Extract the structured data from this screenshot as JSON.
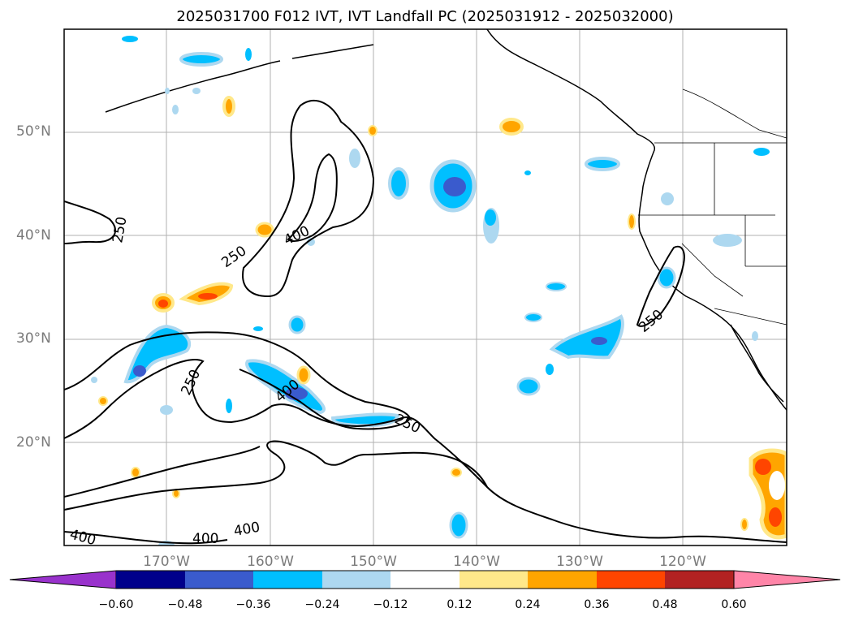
{
  "title": "2025031700 F012 IVT, IVT Landfall PC (2025031912 - 2025032000)",
  "latitude_labels": [
    "50°N",
    "40°N",
    "30°N",
    "20°N"
  ],
  "longitude_labels": [
    "170°W",
    "160°W",
    "150°W",
    "140°W",
    "130°W",
    "120°W"
  ],
  "contour_labels": [
    "250",
    "250",
    "400",
    "250",
    "250",
    "400",
    "250",
    "400",
    "400",
    "400"
  ],
  "colorbar": {
    "ticks": [
      "−0.60",
      "−0.48",
      "−0.36",
      "−0.24",
      "−0.12",
      "0.12",
      "0.24",
      "0.36",
      "0.48",
      "0.60"
    ],
    "colors": [
      "#9932cc",
      "#00008b",
      "#3a5bcd",
      "#00bfff",
      "#add8f0",
      "#ffffff",
      "#ffe88a",
      "#ffa500",
      "#ff4500",
      "#b22222",
      "#ff85a8"
    ]
  },
  "colors": {
    "contour": "#000000",
    "grid": "#b0b0b0",
    "axis_label": "#7a7a7a"
  }
}
